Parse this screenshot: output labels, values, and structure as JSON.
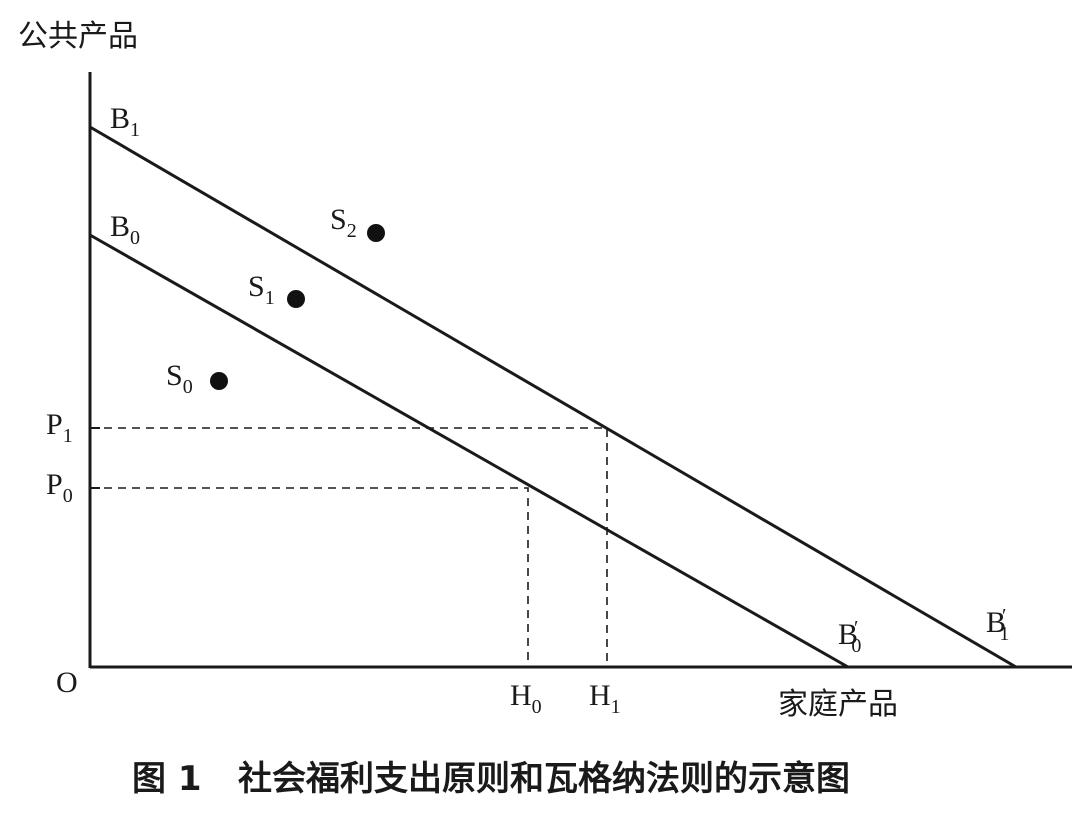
{
  "axis_labels": {
    "y_title": "公共产品",
    "x_title": "家庭产品",
    "origin": "O"
  },
  "budget_lines": [
    {
      "id": "B1",
      "start_label": "B",
      "start_sub": "1",
      "end_label": "B",
      "end_prime": "′",
      "end_sub": "1"
    },
    {
      "id": "B0",
      "start_label": "B",
      "start_sub": "0",
      "end_label": "B",
      "end_prime": "′",
      "end_sub": "0"
    }
  ],
  "points": [
    {
      "label": "S",
      "sub": "0"
    },
    {
      "label": "S",
      "sub": "1"
    },
    {
      "label": "S",
      "sub": "2"
    }
  ],
  "reference_levels": [
    {
      "y_label": "P",
      "y_sub": "1",
      "x_label": "H",
      "x_sub": "1"
    },
    {
      "y_label": "P",
      "y_sub": "0",
      "x_label": "H",
      "x_sub": "0"
    }
  ],
  "caption": {
    "figure_no": "图 1",
    "title": "社会福利支出原则和瓦格纳法则的示意图"
  }
}
